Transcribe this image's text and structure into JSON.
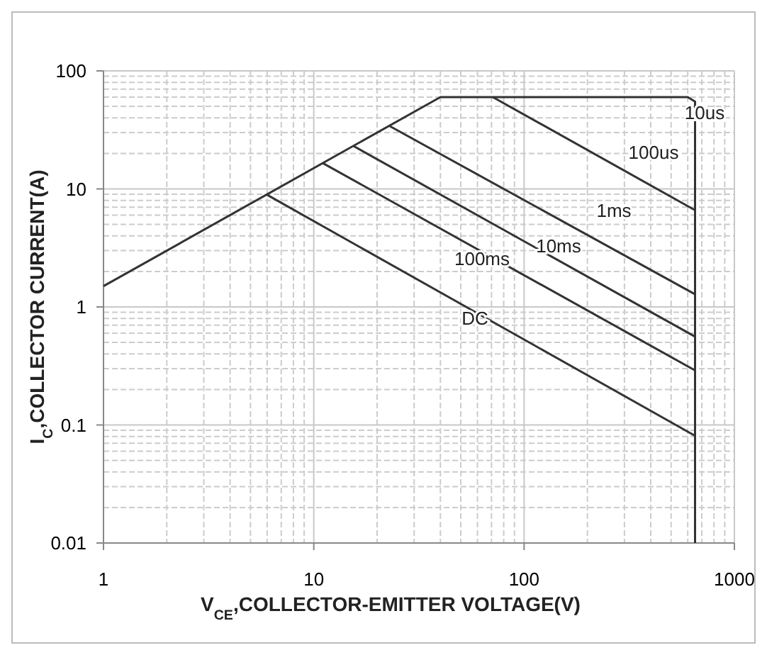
{
  "chart_data": {
    "type": "line",
    "xlabel": "V$_{CE}$,COLLECTOR-EMITTER VOLTAGE(V)",
    "ylabel": "I$_{C}$,COLLECTOR CURRENT(A)",
    "log": "xy",
    "grid": true,
    "marker": "none",
    "line_style": "solid",
    "xlim": [
      1,
      1000
    ],
    "xticks": [
      1,
      10,
      100,
      1000
    ],
    "ylim": [
      0.01,
      100
    ],
    "yticks": [
      0.01,
      0.1,
      1,
      10,
      100
    ],
    "series": [
      {
        "name": "10us",
        "color": "#333333",
        "x": [
          1,
          40,
          600,
          650,
          650
        ],
        "values": [
          1.5,
          60,
          60,
          55,
          0.01
        ]
      },
      {
        "name": "100us",
        "color": "#333333",
        "x": [
          71,
          650
        ],
        "values": [
          60,
          6.6
        ]
      },
      {
        "name": "1ms",
        "color": "#333333",
        "x": [
          23,
          650
        ],
        "values": [
          34,
          1.28
        ]
      },
      {
        "name": "10ms",
        "color": "#333333",
        "x": [
          15.5,
          650
        ],
        "values": [
          23,
          0.56
        ]
      },
      {
        "name": "100ms",
        "color": "#333333",
        "x": [
          11,
          650
        ],
        "values": [
          16.6,
          0.29
        ]
      },
      {
        "name": "DC",
        "color": "#333333",
        "x": [
          6,
          650
        ],
        "values": [
          8.9,
          0.081
        ]
      }
    ]
  }
}
